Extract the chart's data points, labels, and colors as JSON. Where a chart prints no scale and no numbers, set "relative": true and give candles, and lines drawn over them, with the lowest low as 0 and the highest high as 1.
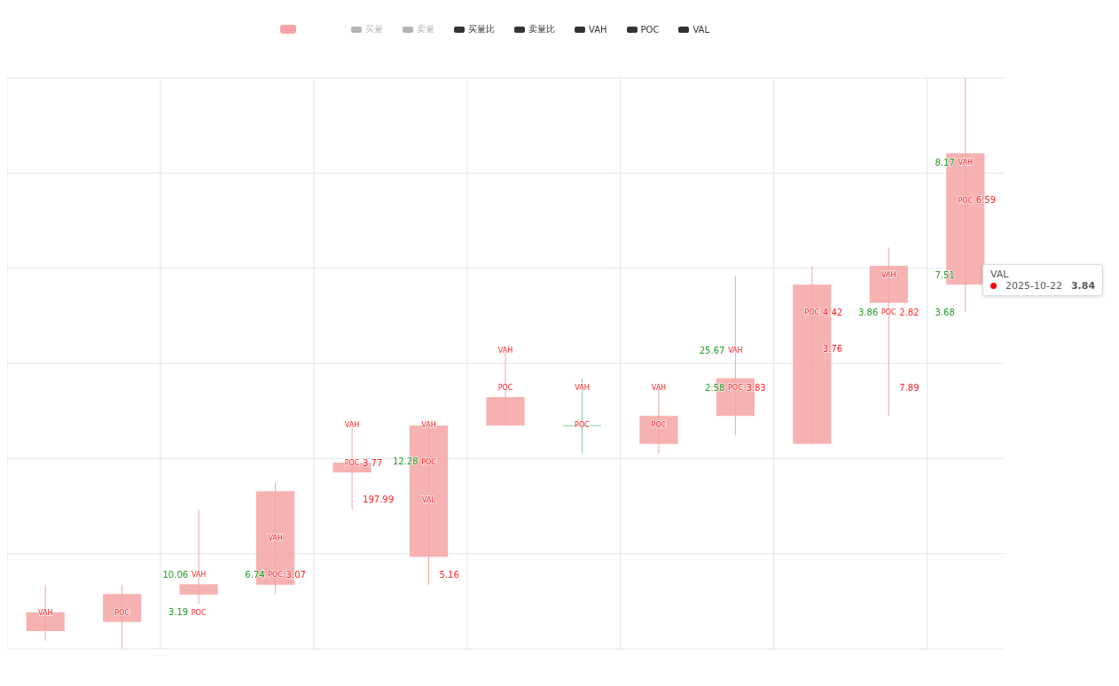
{
  "chart_data": {
    "type": "candlestick",
    "relative": true,
    "grid": true,
    "legend": "top",
    "categories": [
      null,
      null,
      null,
      null,
      null,
      null,
      null,
      null,
      null,
      null,
      null,
      null,
      null
    ],
    "annotations": [
      "VAH",
      "POC",
      "10.06",
      "VAH",
      "3.19",
      "POC",
      "VAH",
      "6.74",
      "POC",
      "3.07",
      "VAH",
      "POC",
      "3.77",
      "197.99",
      "VAH",
      "12.28",
      "POC",
      "VAL",
      "5.16",
      "VAH",
      "POC",
      "VAH",
      "POC",
      "VAH",
      "POC",
      "25.67",
      "VAH",
      "2.58",
      "POC",
      "3.83",
      "POC",
      "4.42",
      "3.76",
      "VAH",
      "3.86",
      "POC",
      "2.82",
      "7.89",
      "8.17",
      "VAH",
      "POC",
      "6.59",
      "7.51",
      "3.68",
      "VAL",
      "2025-10-22",
      "3.84"
    ],
    "series": [
      {
        "color": "#f5a3a3",
        "colors": [
          "#f5a3a3",
          "#f5a3a3",
          "#f5a3a3",
          "#f5a3a3",
          "#f5a3a3",
          "#f5a3a3",
          "#f5a3a3",
          "#7fd19a",
          "#f5a3a3",
          "#f5a3a3",
          "#f5a3a3",
          "#f5a3a3",
          "#f5a3a3"
        ],
        "ohlc": [
          [
            0.031,
            0.112,
            0.014,
            0.064
          ],
          [
            0.047,
            0.112,
            0,
            0.096
          ],
          [
            0.095,
            0.244,
            0.079,
            0.113
          ],
          [
            0.112,
            0.292,
            0.096,
            0.276
          ],
          [
            0.309,
            0.393,
            0.244,
            0.326
          ],
          [
            0.161,
            0.391,
            0.112,
            0.391
          ],
          [
            0.391,
            0.523,
            0.391,
            0.441
          ],
          [
            0.391,
            0.474,
            0.342,
            0.391
          ],
          [
            0.359,
            0.458,
            0.342,
            0.408
          ],
          [
            0.408,
            0.654,
            0.374,
            0.474
          ],
          [
            0.359,
            0.671,
            0.359,
            0.638
          ],
          [
            0.606,
            0.703,
            0.408,
            0.671
          ],
          [
            0.638,
            1,
            0.59,
            0.868
          ]
        ]
      },
      {
        "name": "买量",
        "color": "#b4b4b4",
        "values": [
          null,
          null,
          null,
          null,
          null,
          null,
          null,
          null,
          null,
          null,
          null,
          null,
          null
        ]
      },
      {
        "name": "卖量",
        "color": "#b4b4b4",
        "values": [
          null,
          null,
          null,
          null,
          null,
          null,
          null,
          null,
          null,
          null,
          null,
          null,
          null
        ]
      },
      {
        "name": "买量比",
        "color": "#333333",
        "values": [
          null,
          null,
          null,
          null,
          null,
          null,
          null,
          null,
          null,
          null,
          null,
          null,
          null
        ]
      },
      {
        "name": "卖量比",
        "color": "#333333",
        "values": [
          null,
          null,
          null,
          null,
          null,
          null,
          null,
          null,
          null,
          null,
          null,
          null,
          null
        ]
      },
      {
        "name": "VAH",
        "color": "#333333",
        "values": [
          null,
          null,
          null,
          null,
          null,
          null,
          null,
          null,
          null,
          null,
          null,
          null,
          null
        ]
      },
      {
        "name": "POC",
        "color": "#333333",
        "values": [
          null,
          null,
          null,
          null,
          null,
          null,
          null,
          null,
          null,
          null,
          null,
          null,
          null
        ]
      },
      {
        "name": "VAL",
        "color": "#333333",
        "values": [
          null,
          null,
          null,
          null,
          null,
          null,
          null,
          null,
          null,
          null,
          null,
          null,
          null
        ]
      }
    ]
  }
}
